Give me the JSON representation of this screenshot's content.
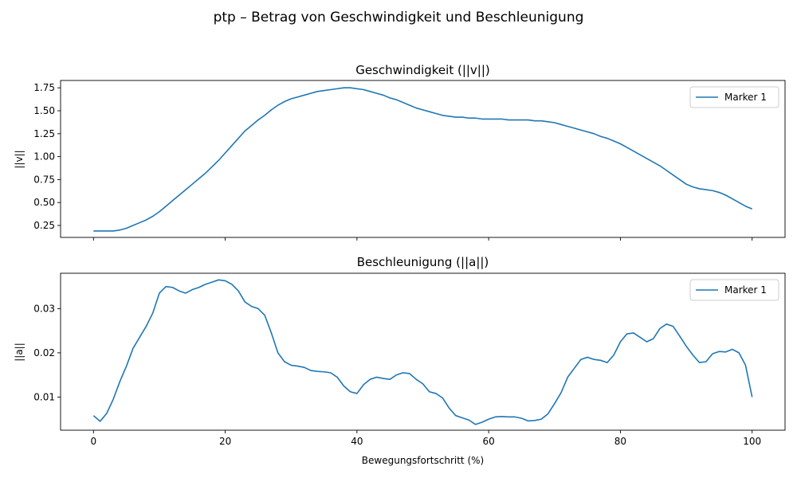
{
  "figure": {
    "title": "ptp – Betrag von Geschwindigkeit und Beschleunigung"
  },
  "chart_data": [
    {
      "type": "line",
      "title": "Geschwindigkeit (||v||)",
      "xlabel": "",
      "ylabel": "||v||",
      "xlim": [
        -5,
        105
      ],
      "ylim": [
        0.12,
        1.83
      ],
      "xticks": [
        0,
        20,
        40,
        60,
        80,
        100
      ],
      "xtick_labels": [
        "",
        "",
        "",
        "",
        "",
        ""
      ],
      "yticks": [
        0.25,
        0.5,
        0.75,
        1.0,
        1.25,
        1.5,
        1.75
      ],
      "ytick_labels": [
        "0.25",
        "0.50",
        "0.75",
        "1.00",
        "1.25",
        "1.50",
        "1.75"
      ],
      "legend": "top-right",
      "grid": false,
      "series": [
        {
          "name": "Marker 1",
          "color": "#1f77b4",
          "x": [
            0,
            1,
            2,
            3,
            4,
            5,
            6,
            7,
            8,
            9,
            10,
            11,
            12,
            13,
            14,
            15,
            16,
            17,
            18,
            19,
            20,
            21,
            22,
            23,
            24,
            25,
            26,
            27,
            28,
            29,
            30,
            31,
            32,
            33,
            34,
            35,
            36,
            37,
            38,
            39,
            40,
            41,
            42,
            43,
            44,
            45,
            46,
            47,
            48,
            49,
            50,
            51,
            52,
            53,
            54,
            55,
            56,
            57,
            58,
            59,
            60,
            61,
            62,
            63,
            64,
            65,
            66,
            67,
            68,
            69,
            70,
            71,
            72,
            73,
            74,
            75,
            76,
            77,
            78,
            79,
            80,
            81,
            82,
            83,
            84,
            85,
            86,
            87,
            88,
            89,
            90,
            91,
            92,
            93,
            94,
            95,
            96,
            97,
            98,
            99,
            100
          ],
          "values": [
            0.19,
            0.19,
            0.19,
            0.19,
            0.2,
            0.22,
            0.25,
            0.28,
            0.31,
            0.35,
            0.4,
            0.46,
            0.52,
            0.58,
            0.64,
            0.7,
            0.76,
            0.82,
            0.89,
            0.96,
            1.04,
            1.12,
            1.2,
            1.28,
            1.34,
            1.4,
            1.45,
            1.51,
            1.56,
            1.6,
            1.63,
            1.65,
            1.67,
            1.69,
            1.71,
            1.72,
            1.73,
            1.74,
            1.75,
            1.75,
            1.74,
            1.73,
            1.71,
            1.69,
            1.67,
            1.64,
            1.62,
            1.59,
            1.56,
            1.53,
            1.51,
            1.49,
            1.47,
            1.45,
            1.44,
            1.43,
            1.43,
            1.42,
            1.42,
            1.41,
            1.41,
            1.41,
            1.41,
            1.4,
            1.4,
            1.4,
            1.4,
            1.39,
            1.39,
            1.38,
            1.37,
            1.35,
            1.33,
            1.31,
            1.29,
            1.27,
            1.25,
            1.22,
            1.2,
            1.17,
            1.14,
            1.1,
            1.06,
            1.02,
            0.98,
            0.94,
            0.9,
            0.85,
            0.8,
            0.75,
            0.7,
            0.67,
            0.65,
            0.64,
            0.63,
            0.61,
            0.58,
            0.54,
            0.5,
            0.46,
            0.43
          ]
        }
      ]
    },
    {
      "type": "line",
      "title": "Beschleunigung (||a||)",
      "xlabel": "Bewegungsfortschritt (%)",
      "ylabel": "||a||",
      "xlim": [
        -5,
        105
      ],
      "ylim": [
        0.0025,
        0.038
      ],
      "xticks": [
        0,
        20,
        40,
        60,
        80,
        100
      ],
      "xtick_labels": [
        "0",
        "20",
        "40",
        "60",
        "80",
        "100"
      ],
      "yticks": [
        0.01,
        0.02,
        0.03
      ],
      "ytick_labels": [
        "0.01",
        "0.02",
        "0.03"
      ],
      "legend": "top-right",
      "grid": false,
      "series": [
        {
          "name": "Marker 1",
          "color": "#1f77b4",
          "x": [
            0,
            1,
            2,
            3,
            4,
            5,
            6,
            7,
            8,
            9,
            10,
            11,
            12,
            13,
            14,
            15,
            16,
            17,
            18,
            19,
            20,
            21,
            22,
            23,
            24,
            25,
            26,
            27,
            28,
            29,
            30,
            31,
            32,
            33,
            34,
            35,
            36,
            37,
            38,
            39,
            40,
            41,
            42,
            43,
            44,
            45,
            46,
            47,
            48,
            49,
            50,
            51,
            52,
            53,
            54,
            55,
            56,
            57,
            58,
            59,
            60,
            61,
            62,
            63,
            64,
            65,
            66,
            67,
            68,
            69,
            70,
            71,
            72,
            73,
            74,
            75,
            76,
            77,
            78,
            79,
            80,
            81,
            82,
            83,
            84,
            85,
            86,
            87,
            88,
            89,
            90,
            91,
            92,
            93,
            94,
            95,
            96,
            97,
            98,
            99,
            100
          ],
          "values": [
            0.0058,
            0.0045,
            0.0063,
            0.0095,
            0.0135,
            0.017,
            0.021,
            0.0235,
            0.026,
            0.029,
            0.0335,
            0.035,
            0.0348,
            0.034,
            0.0335,
            0.0343,
            0.0348,
            0.0355,
            0.036,
            0.0365,
            0.0363,
            0.0355,
            0.034,
            0.0315,
            0.0305,
            0.03,
            0.0285,
            0.0245,
            0.02,
            0.018,
            0.0172,
            0.017,
            0.0167,
            0.016,
            0.0158,
            0.0157,
            0.0155,
            0.0145,
            0.0125,
            0.0112,
            0.0108,
            0.0128,
            0.014,
            0.0145,
            0.0142,
            0.014,
            0.015,
            0.0155,
            0.0153,
            0.014,
            0.013,
            0.0112,
            0.0108,
            0.0098,
            0.0075,
            0.0058,
            0.0053,
            0.0048,
            0.0038,
            0.0043,
            0.005,
            0.0055,
            0.0056,
            0.0055,
            0.0055,
            0.0052,
            0.0046,
            0.0047,
            0.005,
            0.0062,
            0.0085,
            0.011,
            0.0145,
            0.0165,
            0.0185,
            0.019,
            0.0185,
            0.0183,
            0.0178,
            0.0195,
            0.0225,
            0.0243,
            0.0245,
            0.0235,
            0.0225,
            0.0232,
            0.0255,
            0.0265,
            0.026,
            0.0238,
            0.0215,
            0.0195,
            0.0178,
            0.018,
            0.0198,
            0.0203,
            0.0202,
            0.0208,
            0.02,
            0.0172,
            0.01
          ]
        }
      ]
    }
  ]
}
